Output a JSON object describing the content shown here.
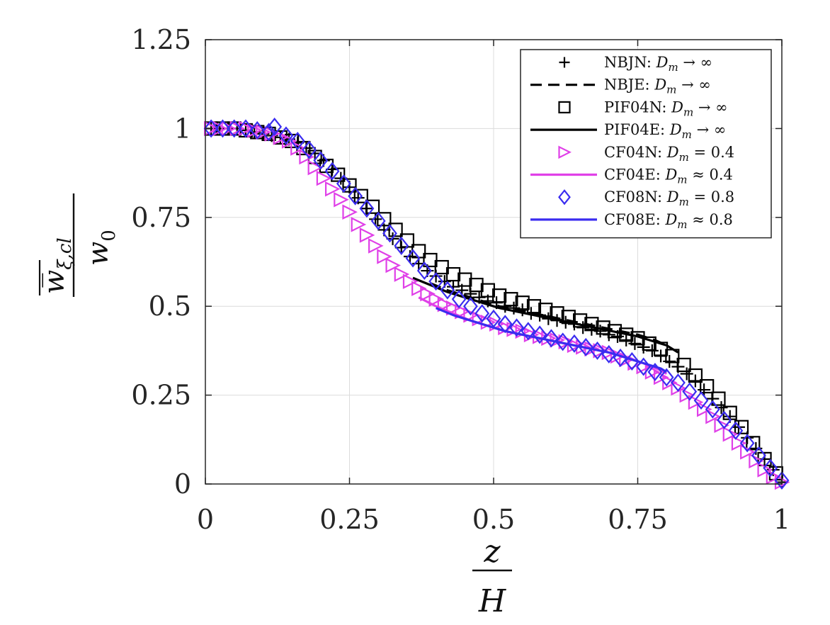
{
  "chart_data": {
    "type": "line",
    "title": "",
    "xlabel": {
      "numerator": "z",
      "denominator": "H"
    },
    "ylabel": {
      "numerator": "w̅",
      "numerator_sub": "ξ,cl",
      "denominator": "w",
      "denominator_sub": "0"
    },
    "xlim": [
      0,
      1
    ],
    "ylim": [
      0,
      1.25
    ],
    "xticks": [
      0,
      0.25,
      0.5,
      0.75,
      1
    ],
    "xtick_labels": [
      "0",
      "0.25",
      "0.5",
      "0.75",
      "1"
    ],
    "yticks": [
      0,
      0.25,
      0.5,
      0.75,
      1,
      1.25
    ],
    "ytick_labels": [
      "0",
      "0.25",
      "0.5",
      "0.75",
      "1",
      "1.25"
    ],
    "grid": true,
    "legend_position": "top-right",
    "series": [
      {
        "name": "NBJN",
        "legend_label": "NBJN: ",
        "legend_math": "D",
        "legend_sub": "m",
        "legend_rel": " → ∞",
        "style": "marker",
        "marker": "plus",
        "color": "#000000",
        "x": [
          0.01,
          0.025,
          0.04,
          0.055,
          0.07,
          0.085,
          0.1,
          0.115,
          0.13,
          0.145,
          0.16,
          0.175,
          0.19,
          0.205,
          0.22,
          0.235,
          0.25,
          0.265,
          0.28,
          0.295,
          0.31,
          0.325,
          0.34,
          0.355,
          0.37,
          0.385,
          0.4,
          0.415,
          0.43,
          0.445,
          0.46,
          0.475,
          0.49,
          0.505,
          0.52,
          0.535,
          0.55,
          0.565,
          0.58,
          0.595,
          0.61,
          0.625,
          0.64,
          0.655,
          0.67,
          0.685,
          0.7,
          0.715,
          0.73,
          0.745,
          0.76,
          0.775,
          0.79,
          0.805,
          0.82,
          0.835,
          0.85,
          0.865,
          0.88,
          0.895,
          0.91,
          0.925,
          0.94,
          0.955,
          0.97,
          0.985,
          1.0
        ],
        "y": [
          1.0,
          1.0,
          1.0,
          1.0,
          0.995,
          0.99,
          0.985,
          0.98,
          0.975,
          0.97,
          0.96,
          0.945,
          0.93,
          0.91,
          0.885,
          0.86,
          0.835,
          0.805,
          0.775,
          0.745,
          0.715,
          0.69,
          0.665,
          0.64,
          0.62,
          0.6,
          0.585,
          0.57,
          0.555,
          0.545,
          0.535,
          0.525,
          0.515,
          0.51,
          0.5,
          0.495,
          0.49,
          0.48,
          0.475,
          0.465,
          0.46,
          0.455,
          0.45,
          0.44,
          0.435,
          0.43,
          0.42,
          0.415,
          0.405,
          0.395,
          0.385,
          0.375,
          0.36,
          0.345,
          0.33,
          0.31,
          0.29,
          0.265,
          0.24,
          0.215,
          0.19,
          0.16,
          0.13,
          0.1,
          0.07,
          0.04,
          0.005
        ]
      },
      {
        "name": "NBJE",
        "legend_label": "NBJE: ",
        "legend_math": "D",
        "legend_sub": "m",
        "legend_rel": " → ∞",
        "style": "dashed",
        "marker": "none",
        "color": "#000000",
        "x": [
          0.39,
          0.42,
          0.45,
          0.48,
          0.51,
          0.54,
          0.57,
          0.6,
          0.63,
          0.66,
          0.69,
          0.72,
          0.75,
          0.78,
          0.8
        ],
        "y": [
          0.565,
          0.545,
          0.53,
          0.515,
          0.5,
          0.49,
          0.48,
          0.47,
          0.46,
          0.45,
          0.44,
          0.43,
          0.42,
          0.405,
          0.39
        ]
      },
      {
        "name": "PIF04N",
        "legend_label": "PIF04N: ",
        "legend_math": "D",
        "legend_sub": "m",
        "legend_rel": " → ∞",
        "style": "marker",
        "marker": "square",
        "color": "#000000",
        "x": [
          0.01,
          0.03,
          0.05,
          0.07,
          0.09,
          0.11,
          0.13,
          0.15,
          0.17,
          0.19,
          0.21,
          0.23,
          0.25,
          0.27,
          0.29,
          0.31,
          0.33,
          0.35,
          0.37,
          0.39,
          0.41,
          0.43,
          0.45,
          0.47,
          0.49,
          0.51,
          0.53,
          0.55,
          0.57,
          0.59,
          0.61,
          0.63,
          0.65,
          0.67,
          0.69,
          0.71,
          0.73,
          0.75,
          0.77,
          0.79,
          0.81,
          0.83,
          0.85,
          0.87,
          0.89,
          0.91,
          0.93,
          0.95,
          0.97,
          0.99
        ],
        "y": [
          1.0,
          1.0,
          1.0,
          0.995,
          0.99,
          0.985,
          0.975,
          0.965,
          0.945,
          0.92,
          0.895,
          0.87,
          0.84,
          0.81,
          0.78,
          0.745,
          0.715,
          0.685,
          0.655,
          0.63,
          0.61,
          0.59,
          0.575,
          0.56,
          0.545,
          0.53,
          0.52,
          0.51,
          0.5,
          0.49,
          0.48,
          0.47,
          0.46,
          0.45,
          0.44,
          0.43,
          0.42,
          0.41,
          0.395,
          0.38,
          0.36,
          0.335,
          0.305,
          0.275,
          0.24,
          0.2,
          0.16,
          0.115,
          0.07,
          0.03
        ]
      },
      {
        "name": "PIF04E",
        "legend_label": "PIF04E: ",
        "legend_math": "D",
        "legend_sub": "m",
        "legend_rel": " → ∞",
        "style": "solid",
        "marker": "none",
        "color": "#000000",
        "x": [
          0.36,
          0.39,
          0.42,
          0.45,
          0.48,
          0.51,
          0.54,
          0.57,
          0.6,
          0.63,
          0.66,
          0.69,
          0.72,
          0.75,
          0.78,
          0.8,
          0.82
        ],
        "y": [
          0.58,
          0.56,
          0.54,
          0.525,
          0.51,
          0.495,
          0.485,
          0.475,
          0.465,
          0.455,
          0.445,
          0.435,
          0.425,
          0.415,
          0.4,
          0.39,
          0.37
        ]
      },
      {
        "name": "CF04N",
        "legend_label": "CF04N: ",
        "legend_math": "D",
        "legend_sub": "m",
        "legend_rel": " = 0.4",
        "style": "marker",
        "marker": "triangle-right",
        "color": "#e040e8",
        "x": [
          0.01,
          0.025,
          0.04,
          0.055,
          0.07,
          0.085,
          0.1,
          0.115,
          0.13,
          0.145,
          0.16,
          0.175,
          0.19,
          0.205,
          0.22,
          0.235,
          0.25,
          0.265,
          0.28,
          0.295,
          0.31,
          0.325,
          0.34,
          0.355,
          0.37,
          0.385,
          0.4,
          0.415,
          0.43,
          0.445,
          0.46,
          0.475,
          0.49,
          0.505,
          0.52,
          0.535,
          0.55,
          0.565,
          0.58,
          0.595,
          0.61,
          0.625,
          0.64,
          0.655,
          0.67,
          0.685,
          0.7,
          0.715,
          0.73,
          0.745,
          0.76,
          0.775,
          0.79,
          0.805,
          0.82,
          0.835,
          0.85,
          0.865,
          0.88,
          0.895,
          0.91,
          0.925,
          0.94,
          0.955,
          0.97,
          0.985,
          1.0
        ],
        "y": [
          1.0,
          1.0,
          1.0,
          1.0,
          1.0,
          0.995,
          0.99,
          0.985,
          0.975,
          0.965,
          0.945,
          0.92,
          0.89,
          0.86,
          0.83,
          0.8,
          0.765,
          0.73,
          0.7,
          0.67,
          0.64,
          0.615,
          0.59,
          0.57,
          0.55,
          0.535,
          0.52,
          0.505,
          0.495,
          0.485,
          0.475,
          0.465,
          0.455,
          0.45,
          0.44,
          0.435,
          0.43,
          0.42,
          0.415,
          0.41,
          0.405,
          0.4,
          0.39,
          0.385,
          0.38,
          0.375,
          0.37,
          0.36,
          0.35,
          0.34,
          0.33,
          0.315,
          0.3,
          0.285,
          0.27,
          0.25,
          0.23,
          0.21,
          0.19,
          0.165,
          0.14,
          0.115,
          0.09,
          0.065,
          0.04,
          0.02,
          0.005
        ]
      },
      {
        "name": "CF04E",
        "legend_label": "CF04E: ",
        "legend_math": "D",
        "legend_sub": "m",
        "legend_rel": " ≈ 0.4",
        "style": "solid",
        "marker": "none",
        "color": "#e040e8",
        "x": [
          0.37,
          0.4,
          0.43,
          0.46,
          0.49,
          0.52,
          0.55,
          0.58,
          0.61,
          0.64,
          0.67,
          0.7,
          0.73,
          0.76,
          0.79,
          0.8
        ],
        "y": [
          0.525,
          0.5,
          0.48,
          0.46,
          0.445,
          0.43,
          0.42,
          0.41,
          0.4,
          0.39,
          0.38,
          0.37,
          0.355,
          0.34,
          0.32,
          0.31
        ]
      },
      {
        "name": "CF08N",
        "legend_label": "CF08N: ",
        "legend_math": "D",
        "legend_sub": "m",
        "legend_rel": " = 0.8",
        "style": "marker",
        "marker": "diamond",
        "color": "#3a2cf0",
        "x": [
          0.01,
          0.03,
          0.05,
          0.07,
          0.09,
          0.11,
          0.12,
          0.14,
          0.16,
          0.18,
          0.2,
          0.22,
          0.24,
          0.26,
          0.28,
          0.3,
          0.32,
          0.34,
          0.36,
          0.38,
          0.4,
          0.42,
          0.44,
          0.46,
          0.48,
          0.5,
          0.52,
          0.54,
          0.56,
          0.58,
          0.6,
          0.62,
          0.64,
          0.66,
          0.68,
          0.7,
          0.72,
          0.74,
          0.76,
          0.78,
          0.8,
          0.82,
          0.84,
          0.86,
          0.88,
          0.9,
          0.92,
          0.94,
          0.96,
          0.98,
          1.0
        ],
        "y": [
          1.0,
          1.0,
          1.0,
          1.0,
          0.995,
          0.99,
          1.005,
          0.98,
          0.965,
          0.94,
          0.91,
          0.88,
          0.845,
          0.81,
          0.775,
          0.74,
          0.705,
          0.67,
          0.635,
          0.6,
          0.57,
          0.545,
          0.52,
          0.5,
          0.48,
          0.465,
          0.45,
          0.44,
          0.43,
          0.42,
          0.41,
          0.4,
          0.395,
          0.385,
          0.375,
          0.365,
          0.355,
          0.345,
          0.33,
          0.315,
          0.3,
          0.285,
          0.26,
          0.235,
          0.21,
          0.18,
          0.15,
          0.115,
          0.08,
          0.045,
          0.01
        ]
      },
      {
        "name": "CF08E",
        "legend_label": "CF08E: ",
        "legend_math": "D",
        "legend_sub": "m",
        "legend_rel": " ≈ 0.8",
        "style": "solid",
        "marker": "none",
        "color": "#3a2cf0",
        "x": [
          0.4,
          0.43,
          0.46,
          0.49,
          0.52,
          0.55,
          0.58,
          0.61,
          0.64,
          0.67,
          0.7,
          0.73,
          0.76,
          0.79,
          0.8
        ],
        "y": [
          0.495,
          0.475,
          0.46,
          0.445,
          0.43,
          0.42,
          0.41,
          0.4,
          0.39,
          0.38,
          0.37,
          0.355,
          0.34,
          0.325,
          0.315
        ]
      }
    ]
  }
}
